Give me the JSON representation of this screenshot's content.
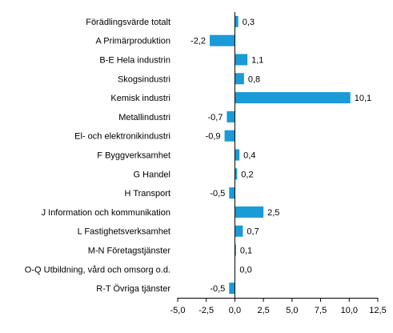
{
  "chart_data": {
    "type": "bar",
    "orientation": "horizontal",
    "title": "",
    "xlabel": "",
    "ylabel": "",
    "xlim": [
      -5,
      12.5
    ],
    "xticks": [
      -5,
      -2.5,
      0,
      2.5,
      5,
      7.5,
      10,
      12.5
    ],
    "xtick_labels": [
      "-5,0",
      "-2,5",
      "0,0",
      "2,5",
      "5,0",
      "7,5",
      "10,0",
      "12,5"
    ],
    "grid": false,
    "legend": "none",
    "bar_color": "#1a9ad6",
    "categories": [
      "Förädlingsvärde totalt",
      "A Primärproduktion",
      "B-E Hela industrin",
      "Skogsindustri",
      "Kemisk industri",
      "Metallindustri",
      "El- och elektronikindustri",
      "F Byggverksamhet",
      "G Handel",
      "H Transport",
      "J Information och kommunikation",
      "L Fastighetsverksamhet",
      "M-N Företagstjänster",
      "O-Q Utbildning, vård och omsorg o.d.",
      "R-T Övriga tjänster"
    ],
    "values": [
      0.3,
      -2.2,
      1.1,
      0.8,
      10.1,
      -0.7,
      -0.9,
      0.4,
      0.2,
      -0.5,
      2.5,
      0.7,
      0.1,
      0.0,
      -0.5
    ],
    "value_labels": [
      "0,3",
      "-2,2",
      "1,1",
      "0,8",
      "10,1",
      "-0,7",
      "-0,9",
      "0,4",
      "0,2",
      "-0,5",
      "2,5",
      "0,7",
      "0,1",
      "0,0",
      "-0,5"
    ]
  }
}
